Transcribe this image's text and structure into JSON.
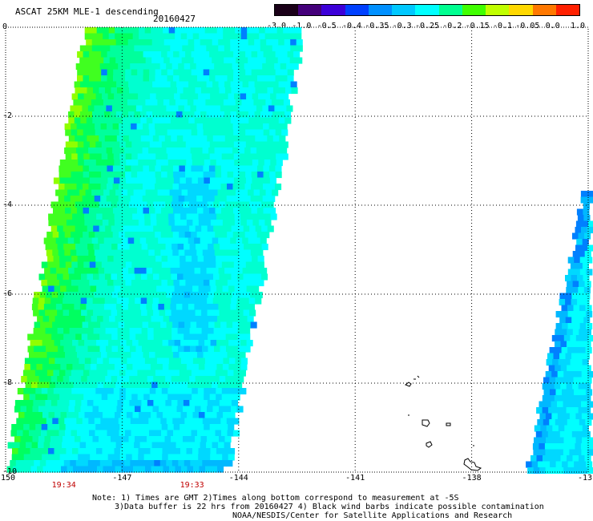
{
  "header": {
    "title": "ASCAT 25KM MLE-1 descending",
    "date": "20160427"
  },
  "colorbar": {
    "labels": [
      "-3.0",
      "-1.0",
      "-0.5",
      "-0.4",
      "-0.35",
      "-0.3",
      "-0.25",
      "-0.2",
      "-0.15",
      "-0.1",
      "-0.05",
      "0.0",
      "1.0"
    ],
    "colors": [
      "#1a0018",
      "#44007a",
      "#3c00d8",
      "#0040ff",
      "#0090ff",
      "#00c8ff",
      "#00ffff",
      "#00ff90",
      "#40ff00",
      "#c0ff00",
      "#ffd800",
      "#ff7800",
      "#ff2000"
    ]
  },
  "axes": {
    "x_ticks": [
      "-150",
      "-147",
      "-144",
      "-141",
      "-138",
      "-13"
    ],
    "y_ticks": [
      "0",
      "-2",
      "-4",
      "-6",
      "-8",
      "-10"
    ],
    "x_range": [
      -150,
      -135
    ],
    "y_range": [
      0,
      -10
    ]
  },
  "times": [
    {
      "label": "19:34",
      "lon": -148.5
    },
    {
      "label": "19:33",
      "lon": -145.2
    }
  ],
  "notes": [
    "Note: 1) Times are GMT 2)Times along bottom correspond to measurement at -5S",
    "3)Data buffer is 22 hrs from 20160427 4) Black wind barbs indicate possible contamination",
    "NOAA/NESDIS/Center for Satellite Applications and Research"
  ]
}
